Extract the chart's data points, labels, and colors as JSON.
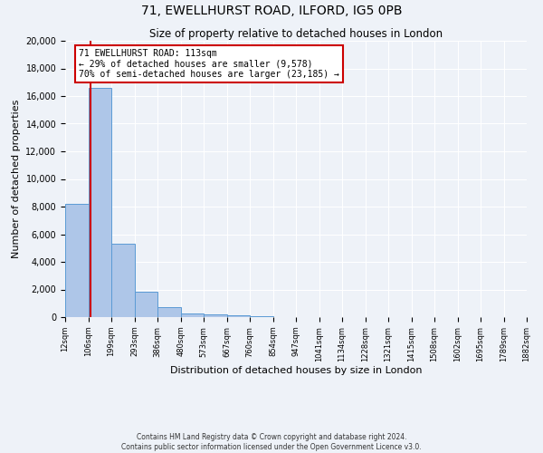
{
  "title1": "71, EWELLHURST ROAD, ILFORD, IG5 0PB",
  "title2": "Size of property relative to detached houses in London",
  "xlabel": "Distribution of detached houses by size in London",
  "ylabel": "Number of detached properties",
  "bin_edges": [
    12,
    106,
    199,
    293,
    386,
    480,
    573,
    667,
    760,
    854,
    947,
    1041,
    1134,
    1228,
    1321,
    1415,
    1508,
    1602,
    1695,
    1789,
    1882
  ],
  "bin_counts": [
    8200,
    16600,
    5300,
    1850,
    750,
    280,
    210,
    100,
    80,
    0,
    0,
    0,
    0,
    0,
    0,
    0,
    0,
    0,
    0,
    0
  ],
  "bar_color": "#aec6e8",
  "bar_edge_color": "#5b9bd5",
  "property_line_x": 113,
  "property_line_color": "#cc0000",
  "ylim": [
    0,
    20000
  ],
  "yticks": [
    0,
    2000,
    4000,
    6000,
    8000,
    10000,
    12000,
    14000,
    16000,
    18000,
    20000
  ],
  "annotation_text1": "71 EWELLHURST ROAD: 113sqm",
  "annotation_text2": "← 29% of detached houses are smaller (9,578)",
  "annotation_text3": "70% of semi-detached houses are larger (23,185) →",
  "annotation_box_color": "#ffffff",
  "annotation_box_edge": "#cc0000",
  "footnote1": "Contains HM Land Registry data © Crown copyright and database right 2024.",
  "footnote2": "Contains public sector information licensed under the Open Government Licence v3.0.",
  "bg_color": "#eef2f8",
  "plot_bg_color": "#eef2f8",
  "grid_color": "#ffffff",
  "title1_fontsize": 10,
  "title2_fontsize": 8.5,
  "xlabel_fontsize": 8,
  "ylabel_fontsize": 8
}
